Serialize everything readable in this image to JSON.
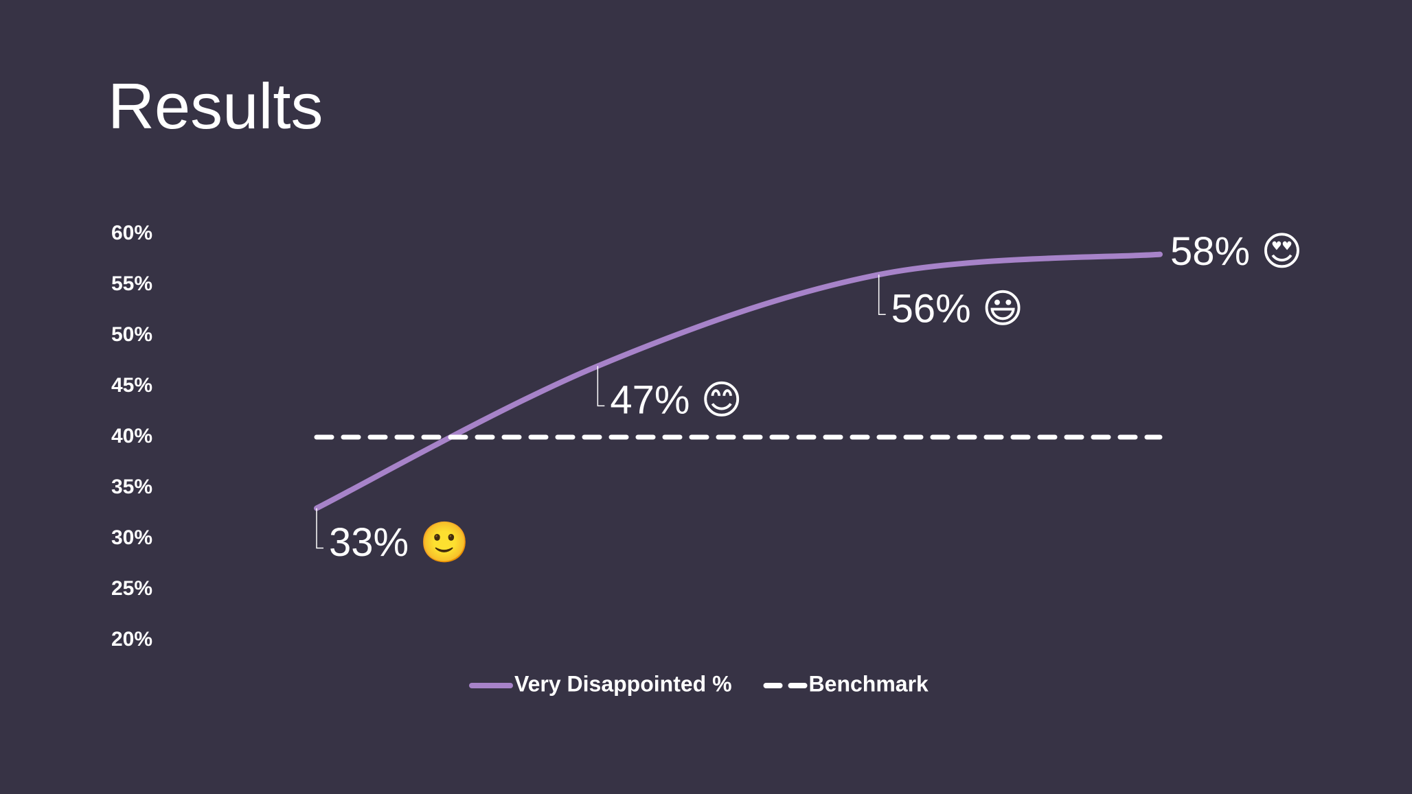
{
  "title": "Results",
  "chart_data": {
    "type": "line",
    "categories": [
      null,
      null,
      null,
      null
    ],
    "series": [
      {
        "name": "Very Disappointed %",
        "color": "#a783c9",
        "values": [
          33,
          47,
          56,
          58
        ],
        "value_labels": [
          "33% 🙂",
          "47% 😊",
          "56% 😃",
          "58% 😍"
        ],
        "smooth": true
      },
      {
        "name": "Benchmark",
        "color": "#ffffff",
        "values": [
          40,
          40,
          40,
          40
        ],
        "dashed": true
      }
    ],
    "ylim": [
      20,
      60
    ],
    "yticks": [
      {
        "value": 20,
        "label": "20%"
      },
      {
        "value": 25,
        "label": "25%"
      },
      {
        "value": 30,
        "label": "30%"
      },
      {
        "value": 35,
        "label": "35%"
      },
      {
        "value": 40,
        "label": "40%"
      },
      {
        "value": 45,
        "label": "45%"
      },
      {
        "value": 50,
        "label": "50%"
      },
      {
        "value": 55,
        "label": "55%"
      },
      {
        "value": 60,
        "label": "60%"
      }
    ],
    "grid": false,
    "legend": "bottom"
  }
}
